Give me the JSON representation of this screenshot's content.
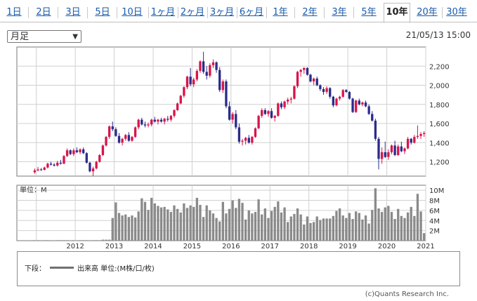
{
  "tabs": [
    {
      "label": "1日"
    },
    {
      "label": "2日"
    },
    {
      "label": "3日"
    },
    {
      "label": "5日"
    },
    {
      "label": "10日"
    },
    {
      "label": "1ヶ月"
    },
    {
      "label": "2ヶ月"
    },
    {
      "label": "3ヶ月"
    },
    {
      "label": "6ヶ月"
    },
    {
      "label": "1年"
    },
    {
      "label": "2年"
    },
    {
      "label": "3年"
    },
    {
      "label": "5年"
    },
    {
      "label": "10年",
      "active": true
    },
    {
      "label": "20年"
    },
    {
      "label": "30年"
    }
  ],
  "period_select": {
    "value": "月足"
  },
  "timestamp": "21/05/13 15:00",
  "legend": {
    "prefix": "下段：",
    "series_label": "出来高 単位:(M株/口/枚)"
  },
  "copyright": "(c)Quants Research Inc.",
  "colors": {
    "up": "#d8154b",
    "down": "#2b2b8c",
    "volume": "#8a8a8a"
  },
  "chart_data": [
    {
      "type": "candlestick",
      "price_axis": {
        "ylim": [
          1050,
          2400
        ],
        "ticks": [
          1200,
          1400,
          1600,
          1800,
          2000,
          2200
        ]
      },
      "x_axis": {
        "range": [
          "2011-01",
          "2021-06"
        ],
        "tick_labels": [
          "2012",
          "2013",
          "2014",
          "2015",
          "2016",
          "2017",
          "2018",
          "2019",
          "2020",
          "2021"
        ]
      },
      "start": "2011-06",
      "candles_ohlc": [
        [
          1090,
          1130,
          1075,
          1110
        ],
        [
          1110,
          1145,
          1100,
          1120
        ],
        [
          1120,
          1135,
          1105,
          1115
        ],
        [
          1115,
          1150,
          1110,
          1140
        ],
        [
          1140,
          1190,
          1130,
          1180
        ],
        [
          1180,
          1200,
          1160,
          1170
        ],
        [
          1170,
          1185,
          1150,
          1160
        ],
        [
          1160,
          1210,
          1150,
          1190
        ],
        [
          1190,
          1220,
          1170,
          1180
        ],
        [
          1180,
          1270,
          1175,
          1260
        ],
        [
          1260,
          1340,
          1250,
          1320
        ],
        [
          1320,
          1330,
          1270,
          1280
        ],
        [
          1280,
          1340,
          1260,
          1320
        ],
        [
          1320,
          1350,
          1290,
          1300
        ],
        [
          1300,
          1340,
          1280,
          1330
        ],
        [
          1330,
          1350,
          1280,
          1290
        ],
        [
          1290,
          1300,
          1180,
          1190
        ],
        [
          1190,
          1200,
          1090,
          1100
        ],
        [
          1100,
          1150,
          1050,
          1130
        ],
        [
          1130,
          1210,
          1120,
          1200
        ],
        [
          1200,
          1280,
          1190,
          1270
        ],
        [
          1270,
          1380,
          1260,
          1370
        ],
        [
          1370,
          1470,
          1360,
          1460
        ],
        [
          1460,
          1580,
          1440,
          1570
        ],
        [
          1570,
          1620,
          1520,
          1540
        ],
        [
          1540,
          1560,
          1460,
          1470
        ],
        [
          1470,
          1500,
          1390,
          1400
        ],
        [
          1400,
          1450,
          1370,
          1440
        ],
        [
          1440,
          1490,
          1420,
          1480
        ],
        [
          1480,
          1510,
          1410,
          1420
        ],
        [
          1420,
          1470,
          1410,
          1460
        ],
        [
          1460,
          1570,
          1450,
          1560
        ],
        [
          1560,
          1650,
          1540,
          1640
        ],
        [
          1640,
          1660,
          1580,
          1590
        ],
        [
          1590,
          1620,
          1560,
          1580
        ],
        [
          1580,
          1610,
          1560,
          1590
        ],
        [
          1590,
          1650,
          1570,
          1640
        ],
        [
          1640,
          1670,
          1610,
          1620
        ],
        [
          1620,
          1650,
          1590,
          1640
        ],
        [
          1640,
          1660,
          1610,
          1620
        ],
        [
          1620,
          1660,
          1590,
          1650
        ],
        [
          1650,
          1680,
          1620,
          1640
        ],
        [
          1640,
          1690,
          1620,
          1680
        ],
        [
          1680,
          1750,
          1660,
          1740
        ],
        [
          1740,
          1820,
          1730,
          1810
        ],
        [
          1810,
          1900,
          1800,
          1890
        ],
        [
          1890,
          1990,
          1870,
          1980
        ],
        [
          1980,
          2100,
          1960,
          2090
        ],
        [
          2090,
          2180,
          1990,
          2010
        ],
        [
          2010,
          2080,
          1980,
          2060
        ],
        [
          2060,
          2170,
          2040,
          2150
        ],
        [
          2150,
          2260,
          2130,
          2250
        ],
        [
          2250,
          2350,
          2120,
          2140
        ],
        [
          2140,
          2200,
          2060,
          2100
        ],
        [
          2100,
          2230,
          2080,
          2210
        ],
        [
          2210,
          2270,
          2180,
          2240
        ],
        [
          2240,
          2250,
          2130,
          2160
        ],
        [
          2160,
          2190,
          1930,
          1950
        ],
        [
          1950,
          2060,
          1920,
          2040
        ],
        [
          2040,
          2060,
          1760,
          1780
        ],
        [
          1780,
          1830,
          1630,
          1640
        ],
        [
          1640,
          1720,
          1600,
          1700
        ],
        [
          1700,
          1740,
          1540,
          1560
        ],
        [
          1560,
          1600,
          1390,
          1410
        ],
        [
          1410,
          1440,
          1370,
          1420
        ],
        [
          1420,
          1460,
          1380,
          1450
        ],
        [
          1450,
          1480,
          1390,
          1400
        ],
        [
          1400,
          1470,
          1380,
          1460
        ],
        [
          1460,
          1560,
          1450,
          1550
        ],
        [
          1550,
          1690,
          1540,
          1680
        ],
        [
          1680,
          1760,
          1660,
          1740
        ],
        [
          1740,
          1760,
          1690,
          1700
        ],
        [
          1700,
          1740,
          1670,
          1730
        ],
        [
          1730,
          1760,
          1650,
          1660
        ],
        [
          1660,
          1690,
          1620,
          1680
        ],
        [
          1680,
          1820,
          1670,
          1810
        ],
        [
          1810,
          1830,
          1750,
          1770
        ],
        [
          1770,
          1840,
          1750,
          1830
        ],
        [
          1830,
          1870,
          1800,
          1850
        ],
        [
          1850,
          1880,
          1810,
          1860
        ],
        [
          1860,
          2000,
          1850,
          1990
        ],
        [
          1990,
          2150,
          1970,
          2140
        ],
        [
          2140,
          2170,
          2090,
          2160
        ],
        [
          2160,
          2190,
          2120,
          2180
        ],
        [
          2180,
          2190,
          2100,
          2110
        ],
        [
          2110,
          2120,
          2030,
          2040
        ],
        [
          2040,
          2080,
          2000,
          2070
        ],
        [
          2070,
          2090,
          1990,
          2000
        ],
        [
          2000,
          2010,
          1940,
          1960
        ],
        [
          1960,
          1980,
          1900,
          1930
        ],
        [
          1930,
          1990,
          1910,
          1970
        ],
        [
          1970,
          1980,
          1860,
          1880
        ],
        [
          1880,
          1890,
          1770,
          1790
        ],
        [
          1790,
          1870,
          1780,
          1860
        ],
        [
          1860,
          1890,
          1840,
          1880
        ],
        [
          1880,
          1960,
          1870,
          1950
        ],
        [
          1950,
          1960,
          1920,
          1930
        ],
        [
          1930,
          1940,
          1850,
          1860
        ],
        [
          1860,
          1870,
          1710,
          1720
        ],
        [
          1720,
          1850,
          1710,
          1840
        ],
        [
          1840,
          1860,
          1790,
          1800
        ],
        [
          1800,
          1830,
          1780,
          1820
        ],
        [
          1820,
          1840,
          1770,
          1780
        ],
        [
          1780,
          1800,
          1690,
          1700
        ],
        [
          1700,
          1730,
          1620,
          1630
        ],
        [
          1630,
          1650,
          1420,
          1440
        ],
        [
          1440,
          1460,
          1120,
          1230
        ],
        [
          1230,
          1350,
          1180,
          1300
        ],
        [
          1300,
          1410,
          1240,
          1250
        ],
        [
          1250,
          1330,
          1220,
          1300
        ],
        [
          1300,
          1380,
          1280,
          1370
        ],
        [
          1370,
          1420,
          1260,
          1270
        ],
        [
          1270,
          1380,
          1260,
          1360
        ],
        [
          1360,
          1410,
          1300,
          1310
        ],
        [
          1310,
          1350,
          1280,
          1340
        ],
        [
          1340,
          1460,
          1330,
          1440
        ],
        [
          1440,
          1450,
          1380,
          1400
        ],
        [
          1400,
          1480,
          1390,
          1460
        ],
        [
          1460,
          1580,
          1440,
          1470
        ],
        [
          1470,
          1510,
          1440,
          1490
        ],
        [
          1490,
          1520,
          1460,
          1500
        ]
      ]
    },
    {
      "type": "bar",
      "name": "出来高",
      "unit_label": "単位：M",
      "ylim": [
        0,
        11
      ],
      "ticks": [
        2,
        4,
        6,
        8,
        10
      ],
      "tick_labels": [
        "2M",
        "4M",
        "6M",
        "8M",
        "10M"
      ],
      "values": [
        0.1,
        0.1,
        0,
        0.1,
        0.1,
        0,
        0,
        0.1,
        0.1,
        0.1,
        0.1,
        0,
        0.1,
        0,
        0.1,
        0.1,
        0.1,
        0,
        0.1,
        0.1,
        0.1,
        0.2,
        0.2,
        0.2,
        4.5,
        7.6,
        5.5,
        5.0,
        5.2,
        4.7,
        5.0,
        4.6,
        5.8,
        8.4,
        7.7,
        6.1,
        8.5,
        7.4,
        6.9,
        6.6,
        6.7,
        6.2,
        5.7,
        7.0,
        6.3,
        5.6,
        7.4,
        6.5,
        7.0,
        6.7,
        8.5,
        7.1,
        4.7,
        7.0,
        6.0,
        5.4,
        4.5,
        3.8,
        7.7,
        5.4,
        6.3,
        8.0,
        6.5,
        8.3,
        7.5,
        4.2,
        6.0,
        5.4,
        5.7,
        8.2,
        5.2,
        6.4,
        4.5,
        5.9,
        6.7,
        7.8,
        5.6,
        6.6,
        3.7,
        4.8,
        5.3,
        6.4,
        5.2,
        3.2,
        4.8,
        3.5,
        3.7,
        4.8,
        4.1,
        4.4,
        4.4,
        4.4,
        4.9,
        5.9,
        6.4,
        5.0,
        4.5,
        5.5,
        4.3,
        5.8,
        5.5,
        4.2,
        5.0,
        3.4,
        6.1,
        10.4,
        6.4,
        5.7,
        6.6,
        6.9,
        5.7,
        4.3,
        6.3,
        4.9,
        4.5,
        5.6,
        6.7,
        4.9,
        9.3,
        5.8,
        1.5
      ]
    }
  ]
}
